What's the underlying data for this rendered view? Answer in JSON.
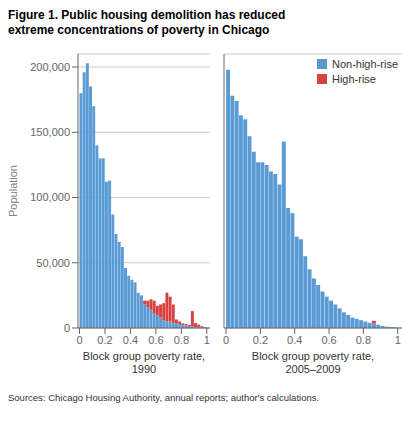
{
  "chart_data": [
    {
      "type": "histogram",
      "stacked": true,
      "grid": true,
      "title": "Figure 1. Public housing demolition has reduced\nextreme concentrations of poverty in Chicago",
      "annotations": [
        "Sources: Chicago Housing Authority, annual reports; author's calculations."
      ],
      "xlabel": "Block group poverty rate,\n1990",
      "ylabel": "Population",
      "bins": [
        0,
        0.025,
        0.05,
        0.075,
        0.1,
        0.125,
        0.15,
        0.175,
        0.2,
        0.225,
        0.25,
        0.275,
        0.3,
        0.325,
        0.35,
        0.375,
        0.4,
        0.425,
        0.45,
        0.475,
        0.5,
        0.525,
        0.55,
        0.575,
        0.6,
        0.625,
        0.65,
        0.675,
        0.7,
        0.725,
        0.75,
        0.775,
        0.8,
        0.825,
        0.85,
        0.875,
        0.9,
        0.925,
        0.95,
        0.975,
        1
      ],
      "series": [
        {
          "name": "Non-high-rise",
          "color": "#5b9bd5",
          "values": [
            180000,
            196000,
            203000,
            185000,
            170000,
            140000,
            130000,
            130000,
            112000,
            113000,
            87000,
            72000,
            66000,
            62000,
            46000,
            40000,
            37000,
            35000,
            27000,
            25000,
            18000,
            16000,
            14000,
            11000,
            10000,
            8000,
            6000,
            5000,
            5000,
            4000,
            3500,
            3000,
            2000,
            2000,
            1500,
            1000,
            800,
            600,
            400,
            300
          ]
        },
        {
          "name": "High-rise",
          "color": "#d94040",
          "values": [
            0,
            0,
            0,
            0,
            0,
            0,
            0,
            0,
            0,
            0,
            0,
            0,
            0,
            0,
            0,
            0,
            0,
            0,
            0,
            0,
            3000,
            5000,
            8000,
            10000,
            7000,
            10000,
            13000,
            22000,
            19000,
            14000,
            3000,
            2000,
            1500,
            1000,
            800,
            12000,
            3000,
            2000,
            1000,
            500
          ]
        }
      ],
      "xlim": [
        -0.012,
        1.025
      ],
      "xticks": [
        0,
        0.2,
        0.4,
        0.6,
        0.8,
        1
      ],
      "ylim": [
        0,
        210000
      ],
      "yticks": [
        0,
        {
          "value": 50000,
          "label": "50,000"
        },
        {
          "value": 100000,
          "label": "100,000"
        },
        {
          "value": 150000,
          "label": "150,000"
        },
        {
          "value": 200000,
          "label": "200,000"
        }
      ]
    },
    {
      "type": "histogram",
      "stacked": true,
      "grid": true,
      "tick_labels": "x",
      "legend": "upper right",
      "xlabel": "Block group poverty rate,\n2005–2009",
      "bins": [
        0,
        0.025,
        0.05,
        0.075,
        0.1,
        0.125,
        0.15,
        0.175,
        0.2,
        0.225,
        0.25,
        0.275,
        0.3,
        0.325,
        0.35,
        0.375,
        0.4,
        0.425,
        0.45,
        0.475,
        0.5,
        0.525,
        0.55,
        0.575,
        0.6,
        0.625,
        0.65,
        0.675,
        0.7,
        0.725,
        0.75,
        0.775,
        0.8,
        0.825,
        0.85,
        0.875,
        0.9,
        0.925,
        0.95,
        0.975,
        1
      ],
      "series": [
        {
          "name": "Non-high-rise",
          "color": "#5b9bd5",
          "values": [
            198000,
            178000,
            174000,
            163000,
            160000,
            147000,
            135000,
            127000,
            127000,
            125000,
            120000,
            118000,
            110000,
            143000,
            92000,
            88000,
            70000,
            68000,
            55000,
            45000,
            38000,
            33000,
            28000,
            24000,
            21000,
            18000,
            15000,
            12000,
            10000,
            8000,
            7000,
            6000,
            5000,
            4000,
            3500,
            2500,
            1500,
            1000,
            700,
            500
          ]
        },
        {
          "name": "High-rise",
          "color": "#d94040",
          "values": [
            0,
            0,
            0,
            0,
            0,
            0,
            0,
            0,
            0,
            0,
            0,
            0,
            0,
            0,
            0,
            0,
            0,
            0,
            0,
            0,
            0,
            0,
            0,
            0,
            0,
            0,
            0,
            0,
            0,
            0,
            0,
            0,
            0,
            0,
            2000,
            0,
            0,
            0,
            0,
            0
          ]
        }
      ],
      "xlim": [
        -0.012,
        1.025
      ],
      "xticks": [
        0,
        0.2,
        0.4,
        0.6,
        0.8,
        1
      ],
      "ylim": [
        0,
        210000
      ],
      "yticks": [
        0,
        {
          "value": 50000,
          "label": "50,000"
        },
        {
          "value": 100000,
          "label": "100,000"
        },
        {
          "value": 150000,
          "label": "150,000"
        },
        {
          "value": 200000,
          "label": "200,000"
        }
      ]
    }
  ]
}
